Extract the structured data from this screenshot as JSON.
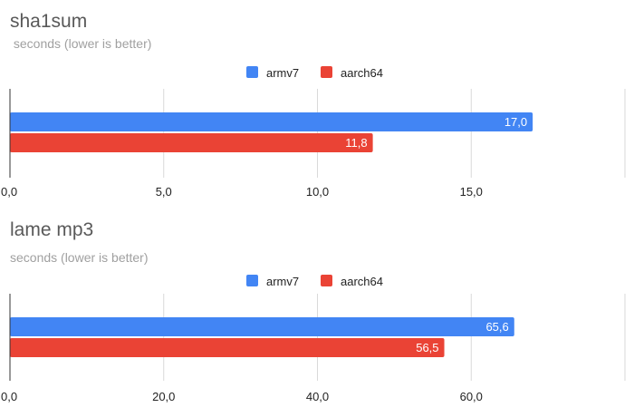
{
  "chart_data": [
    {
      "type": "bar",
      "orientation": "horizontal",
      "title": "sha1sum",
      "subtitle": " seconds (lower is better)",
      "categories": [
        ""
      ],
      "series": [
        {
          "name": "armv7",
          "color": "#4285f4",
          "values": [
            17.0
          ],
          "labels": [
            "17,0"
          ]
        },
        {
          "name": "aarch64",
          "color": "#ea4335",
          "values": [
            11.8
          ],
          "labels": [
            "11,8"
          ]
        }
      ],
      "xlim": [
        0,
        20
      ],
      "ticks": [
        0,
        5,
        10,
        15,
        20
      ],
      "tick_labels": [
        "0,0",
        "5,0",
        "10,0",
        "15,0",
        ""
      ],
      "legend_position": "top-center",
      "grid": true
    },
    {
      "type": "bar",
      "orientation": "horizontal",
      "title": "lame mp3",
      "subtitle": "seconds (lower is better)",
      "categories": [
        ""
      ],
      "series": [
        {
          "name": "armv7",
          "color": "#4285f4",
          "values": [
            65.6
          ],
          "labels": [
            "65,6"
          ]
        },
        {
          "name": "aarch64",
          "color": "#ea4335",
          "values": [
            56.5
          ],
          "labels": [
            "56,5"
          ]
        }
      ],
      "xlim": [
        0,
        80
      ],
      "ticks": [
        0,
        20,
        40,
        60,
        80
      ],
      "tick_labels": [
        "0,0",
        "20,0",
        "40,0",
        "60,0",
        ""
      ],
      "legend_position": "top-center",
      "grid": true
    }
  ]
}
